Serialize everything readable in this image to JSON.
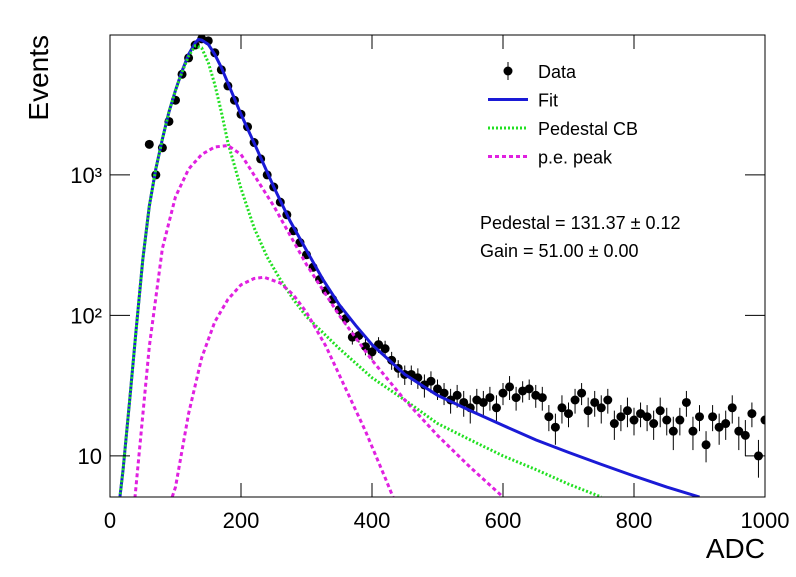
{
  "chart_data": {
    "type": "line",
    "log_y": true,
    "x_label": "ADC",
    "y_label": "Events",
    "xlim": [
      0,
      1000
    ],
    "xticks": [
      0,
      200,
      400,
      600,
      800,
      1000
    ],
    "ylim": [
      5.1,
      9900
    ],
    "yticks": [
      10,
      {
        "value": 100,
        "label": "10²"
      },
      {
        "value": 1000,
        "label": "10³"
      }
    ],
    "annotations": [
      "Pedestal = 131.37 ± 0.12",
      "Gain = 51.00 ± 0.00"
    ],
    "series": [
      {
        "name": "Data",
        "style": "points",
        "color": "#000000",
        "x": [
          60,
          70,
          80,
          90,
          100,
          110,
          120,
          130,
          140,
          150,
          160,
          170,
          180,
          190,
          200,
          210,
          220,
          230,
          240,
          250,
          260,
          270,
          280,
          290,
          300,
          310,
          320,
          330,
          340,
          350,
          360,
          370,
          380,
          390,
          400,
          410,
          420,
          430,
          440,
          450,
          460,
          470,
          480,
          490,
          500,
          510,
          520,
          530,
          540,
          550,
          560,
          570,
          580,
          590,
          600,
          610,
          620,
          630,
          640,
          650,
          660,
          670,
          680,
          690,
          700,
          710,
          720,
          730,
          740,
          750,
          760,
          770,
          780,
          790,
          800,
          810,
          820,
          830,
          840,
          850,
          860,
          870,
          880,
          890,
          900,
          910,
          920,
          930,
          940,
          950,
          960,
          970,
          980,
          990,
          1000
        ],
        "values": [
          1650,
          1000,
          1560,
          2400,
          3400,
          5200,
          6800,
          8400,
          9300,
          9000,
          7400,
          5600,
          4300,
          3400,
          2700,
          2200,
          1700,
          1300,
          1000,
          820,
          640,
          520,
          400,
          330,
          270,
          220,
          180,
          150,
          130,
          110,
          95,
          70,
          72,
          60,
          55,
          62,
          58,
          48,
          42,
          38,
          38,
          36,
          32,
          34,
          30,
          28,
          25,
          27,
          24,
          22,
          25,
          24,
          26,
          22,
          28,
          31,
          26,
          29,
          30,
          27,
          26,
          19,
          16,
          22,
          20,
          25,
          28,
          21,
          24,
          22,
          25,
          17,
          19,
          21,
          18,
          20,
          19,
          17,
          21,
          18,
          15,
          18,
          24,
          15,
          19,
          12,
          19,
          16,
          17,
          22,
          15,
          14,
          20,
          10,
          18
        ],
        "errors": [
          41,
          32,
          39,
          49,
          58,
          72,
          82,
          92,
          96,
          95,
          86,
          75,
          66,
          58,
          52,
          47,
          41,
          36,
          32,
          29,
          25,
          23,
          20,
          18,
          16,
          15,
          13,
          12,
          11,
          10,
          10,
          8,
          8,
          8,
          7,
          8,
          8,
          7,
          6,
          6,
          6,
          6,
          6,
          6,
          5,
          5,
          5,
          5,
          5,
          5,
          5,
          5,
          5,
          5,
          5,
          6,
          5,
          5,
          5,
          5,
          5,
          4,
          4,
          5,
          4,
          5,
          5,
          5,
          5,
          5,
          5,
          4,
          4,
          5,
          4,
          4,
          4,
          4,
          5,
          4,
          4,
          4,
          5,
          4,
          4,
          3,
          4,
          4,
          4,
          5,
          4,
          4,
          4,
          3,
          4
        ]
      },
      {
        "name": "Fit",
        "style": "solid",
        "color": "#1a1ad6",
        "x": [
          15,
          20,
          30,
          40,
          50,
          60,
          70,
          80,
          90,
          100,
          110,
          120,
          130,
          135,
          140,
          150,
          160,
          170,
          180,
          190,
          200,
          225,
          250,
          275,
          300,
          325,
          350,
          375,
          400,
          450,
          500,
          550,
          600,
          650,
          700,
          750,
          800,
          850,
          900
        ],
        "values": [
          5,
          8,
          25,
          80,
          250,
          600,
          1100,
          1800,
          2800,
          4000,
          5500,
          7200,
          8700,
          9200,
          9100,
          8500,
          7200,
          5800,
          4500,
          3500,
          2700,
          1500,
          820,
          470,
          290,
          180,
          119,
          85,
          62,
          38,
          27,
          21,
          16.5,
          13,
          10.6,
          8.7,
          7.2,
          6,
          5.1
        ]
      },
      {
        "name": "Pedestal CB",
        "style": "dotted",
        "color": "#22e022",
        "x": [
          15,
          20,
          30,
          40,
          50,
          60,
          70,
          80,
          90,
          100,
          110,
          120,
          130,
          140,
          150,
          160,
          170,
          180,
          200,
          220,
          240,
          260,
          280,
          300,
          350,
          400,
          450,
          500,
          550,
          600,
          650,
          700,
          750
        ],
        "values": [
          5,
          8,
          25,
          80,
          250,
          600,
          1100,
          1800,
          2800,
          4000,
          5400,
          7000,
          8300,
          8000,
          6300,
          4400,
          2800,
          1700,
          800,
          420,
          260,
          180,
          130,
          98,
          58,
          36,
          25,
          17,
          13,
          10,
          8,
          6.3,
          5.1
        ]
      },
      {
        "name": "p.e. peak",
        "style": "dashed",
        "color": "#e020e0",
        "x": [
          38,
          60,
          80,
          100,
          120,
          140,
          160,
          180,
          200,
          250,
          300,
          350,
          400,
          450,
          500,
          550,
          600
        ],
        "values": [
          5,
          60,
          300,
          700,
          1100,
          1400,
          1580,
          1620,
          1400,
          600,
          230,
          100,
          48,
          25,
          14,
          8.3,
          5.1
        ]
      },
      {
        "name": "p.e. peak",
        "style": "dashed",
        "color": "#e020e0",
        "x": [
          95,
          100,
          120,
          140,
          160,
          180,
          200,
          220,
          235,
          260,
          280,
          300,
          330,
          360,
          390,
          420,
          432
        ],
        "values": [
          5.1,
          6,
          20,
          50,
          90,
          130,
          165,
          183,
          187,
          170,
          140,
          105,
          60,
          30,
          15,
          7,
          5.1
        ]
      }
    ]
  }
}
